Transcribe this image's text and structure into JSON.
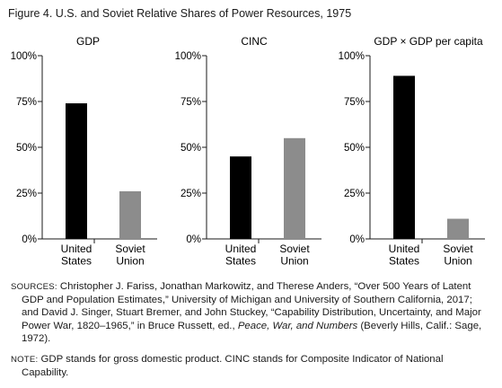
{
  "figure_title": "Figure 4.  U.S. and Soviet Relative Shares of Power Resources, 1975",
  "chart_data": [
    {
      "type": "bar",
      "title": "GDP",
      "categories": [
        [
          "United",
          "States"
        ],
        [
          "Soviet",
          "Union"
        ]
      ],
      "values": [
        74,
        26
      ],
      "colors": [
        "#000000",
        "#8c8c8c"
      ],
      "ylim": [
        0,
        100
      ],
      "yticks": [
        "0%",
        "25%",
        "50%",
        "75%",
        "100%"
      ],
      "ytick_values": [
        0,
        25,
        50,
        75,
        100
      ]
    },
    {
      "type": "bar",
      "title": "CINC",
      "categories": [
        [
          "United",
          "States"
        ],
        [
          "Soviet",
          "Union"
        ]
      ],
      "values": [
        45,
        55
      ],
      "colors": [
        "#000000",
        "#8c8c8c"
      ],
      "ylim": [
        0,
        100
      ],
      "yticks": [
        "0%",
        "25%",
        "50%",
        "75%",
        "100%"
      ],
      "ytick_values": [
        0,
        25,
        50,
        75,
        100
      ]
    },
    {
      "type": "bar",
      "title": "GDP × GDP per capita",
      "categories": [
        [
          "United",
          "States"
        ],
        [
          "Soviet",
          "Union"
        ]
      ],
      "values": [
        89,
        11
      ],
      "colors": [
        "#000000",
        "#8c8c8c"
      ],
      "ylim": [
        0,
        100
      ],
      "yticks": [
        "0%",
        "25%",
        "50%",
        "75%",
        "100%"
      ],
      "ytick_values": [
        0,
        25,
        50,
        75,
        100
      ]
    }
  ],
  "sources": {
    "kicker": "SOURCES:",
    "text_1": " Christopher J. Fariss, Jonathan Markowitz, and Therese Anders, “Over 500 Years of Latent GDP and Population Estimates,” University of Michigan and University of Southern California, 2017; and David J. Singer, Stuart Bremer, and John Stuckey, “Capability Distribution, Uncertainty, and Major Power War, 1820–1965,” in Bruce Russett, ed., ",
    "italic": "Peace, War, and Numbers",
    "text_2": " (Beverly Hills, Calif.: Sage, 1972)."
  },
  "note": {
    "kicker": "NOTE:",
    "text": " GDP stands for gross domestic product. CINC stands for Composite Indicator of National Capability."
  }
}
